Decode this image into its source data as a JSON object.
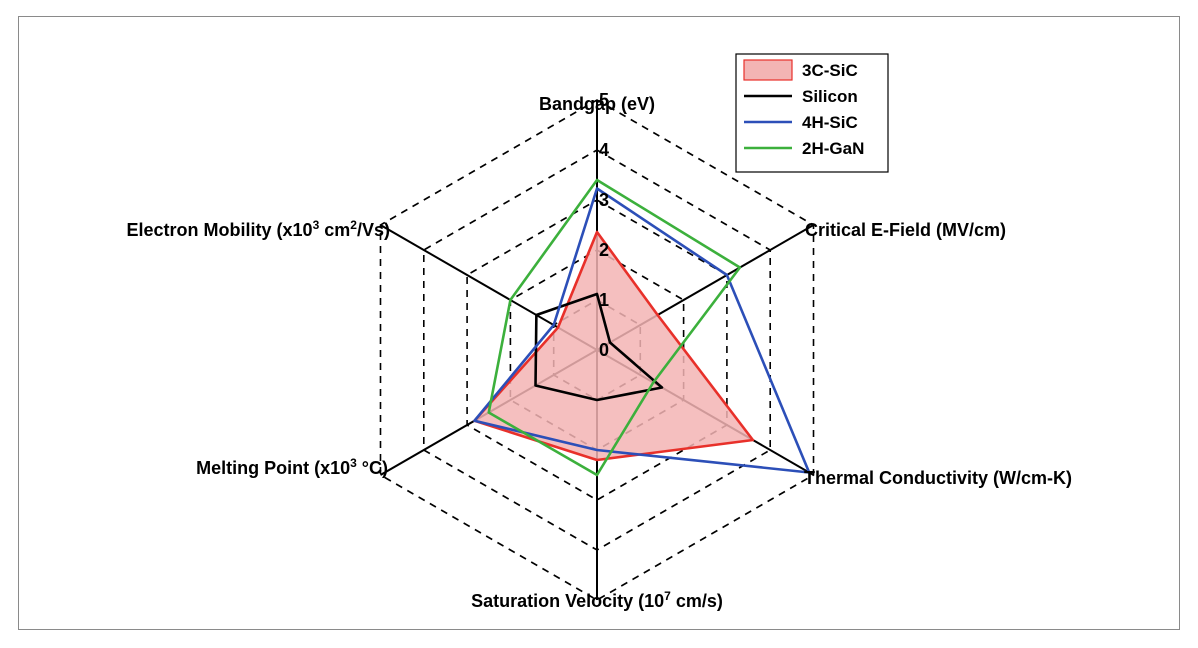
{
  "chart_data": {
    "type": "radar",
    "axes": [
      {
        "label": "Bandgap (eV)",
        "label_parts": [
          "Bandgap (eV)"
        ]
      },
      {
        "label": "Critical E-Field (MV/cm)",
        "label_parts": [
          "Critical E-Field (MV/cm)"
        ]
      },
      {
        "label": "Thermal Conductivity (W/cm-K)",
        "label_parts": [
          "Thermal Conductivity (W/cm-K)"
        ]
      },
      {
        "label": "Saturation Velocity (10^7 cm/s)",
        "label_parts": [
          "Saturation Velocity (10",
          "7",
          " cm/s)"
        ]
      },
      {
        "label": "Melting Point (x10^3 °C)",
        "label_parts": [
          "Melting Point (x10",
          "3",
          " °C)"
        ]
      },
      {
        "label": "Electron Mobility (x10^3 cm^2/Vs)",
        "label_parts": [
          "Electron Mobility (x10",
          "3",
          " cm",
          "2",
          "/Vs)"
        ]
      }
    ],
    "ticks": [
      "0",
      "1",
      "2",
      "3",
      "4",
      "5"
    ],
    "rmax": 5,
    "grid": true,
    "legend_position": "top-right",
    "series": [
      {
        "name": "3C-SiC",
        "color": "#e8302a",
        "fill": "#f3b4b4",
        "filled": true,
        "values": [
          2.36,
          1.4,
          3.6,
          2.2,
          2.83,
          0.9
        ]
      },
      {
        "name": "Silicon",
        "color": "#000000",
        "filled": false,
        "values": [
          1.12,
          0.3,
          1.5,
          1.0,
          1.42,
          1.4
        ]
      },
      {
        "name": "4H-SiC",
        "color": "#2c4fb8",
        "filled": false,
        "values": [
          3.23,
          3.0,
          4.9,
          2.0,
          2.83,
          1.0
        ]
      },
      {
        "name": "2H-GaN",
        "color": "#3cb03c",
        "filled": false,
        "values": [
          3.4,
          3.3,
          1.3,
          2.5,
          2.5,
          2.0
        ]
      }
    ]
  }
}
